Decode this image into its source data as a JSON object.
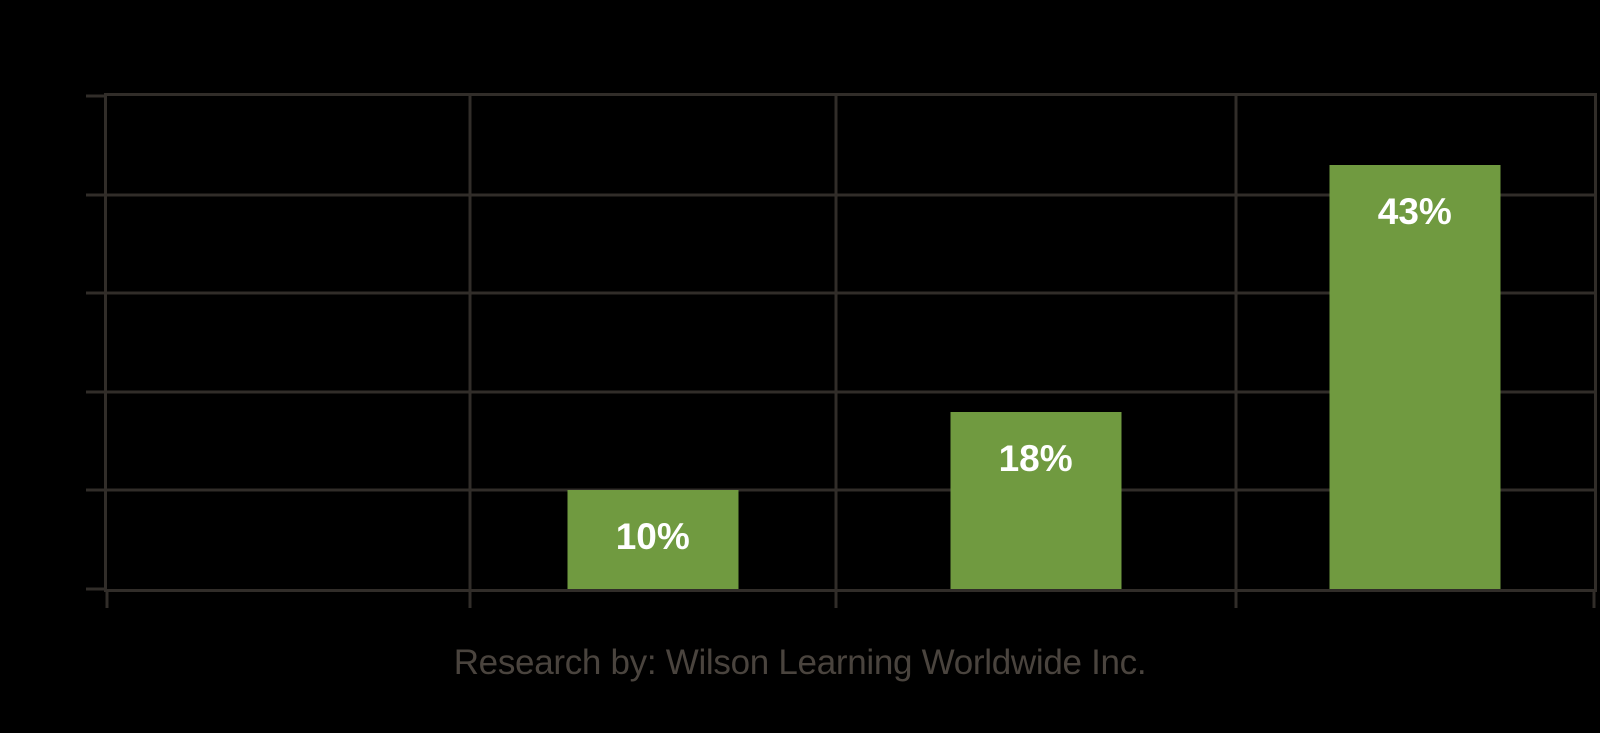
{
  "chart_data": {
    "type": "bar",
    "title": "",
    "xlabel": "",
    "ylabel": "",
    "categories": [
      "",
      "",
      "",
      ""
    ],
    "values": [
      null,
      10,
      18,
      43
    ],
    "bar_labels": [
      "",
      "10%",
      "18%",
      "43%"
    ],
    "ylim": [
      0,
      50
    ],
    "y_gridline_interval": 10,
    "grid": true,
    "legend_position": "none",
    "colors": {
      "bar_fill": "#709A40",
      "bar_label_text": "#FFFFFF",
      "gridline": "#312D29",
      "caption_text": "#4A443E",
      "background": "#000000"
    },
    "caption": "Research by: Wilson Learning Worldwide Inc."
  }
}
